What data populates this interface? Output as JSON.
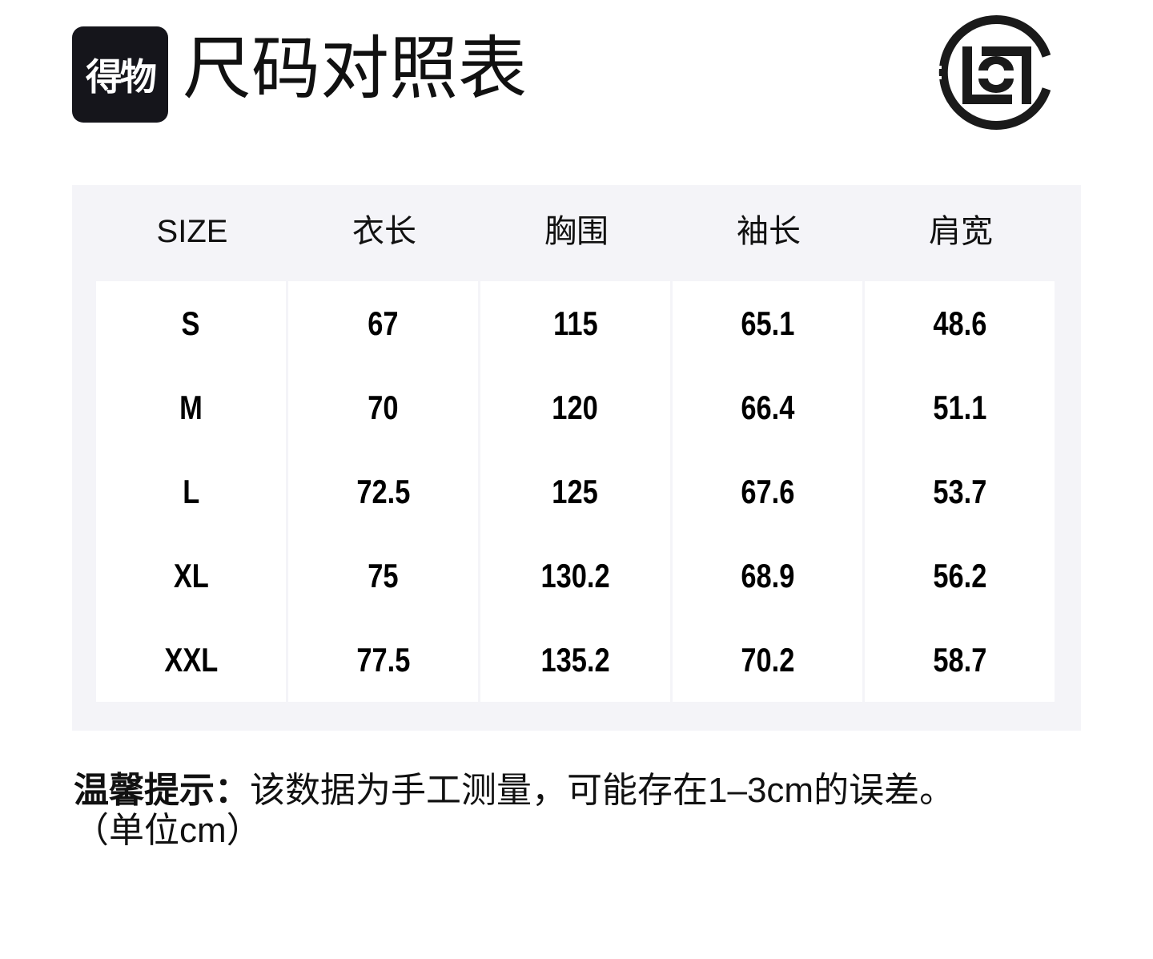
{
  "header": {
    "brand_logo_text": "得物",
    "title": "尺码对照表",
    "right_logo": "clot-logo"
  },
  "table": {
    "columns": [
      "SIZE",
      "衣长",
      "胸围",
      "袖长",
      "肩宽"
    ],
    "rows": [
      [
        "S",
        "67",
        "115",
        "65.1",
        "48.6"
      ],
      [
        "M",
        "70",
        "120",
        "66.4",
        "51.1"
      ],
      [
        "L",
        "72.5",
        "125",
        "67.6",
        "53.7"
      ],
      [
        "XL",
        "75",
        "130.2",
        "68.9",
        "56.2"
      ],
      [
        "XXL",
        "77.5",
        "135.2",
        "70.2",
        "58.7"
      ]
    ]
  },
  "note": {
    "label": "温馨提示：",
    "text": "该数据为手工测量，可能存在1–3cm的误差。",
    "unit": "（单位cm）"
  },
  "colors": {
    "panel_bg": "#f4f4f8",
    "cell_bg": "#ffffff",
    "brand_bg": "#15151b"
  }
}
